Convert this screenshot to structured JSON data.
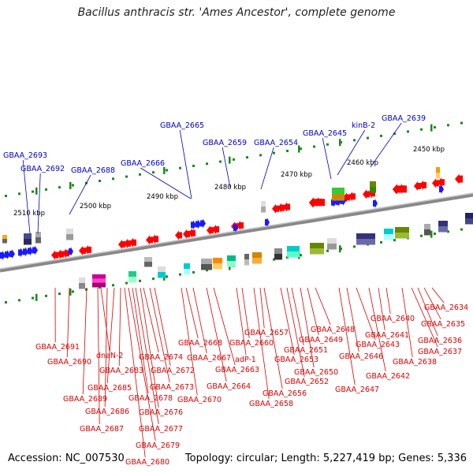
{
  "title": "Bacillus anthracis str. 'Ames Ancestor', complete genome",
  "footer": {
    "accession": "Accession: NC_007530",
    "summary": "Topology: circular; Length: 5,227,419 bp; Genes: 5,336"
  },
  "colors": {
    "forward_gene": "#1a1aff",
    "reverse_gene": "#ff0000",
    "backbone": "#888888",
    "tick": "#1a8a1a",
    "forward_label": "#0000cc",
    "reverse_label": "#dd0000"
  },
  "scale_labels": [
    "2510 kbp",
    "2500 kbp",
    "2490 kbp",
    "2480 kbp",
    "2470 kbp",
    "2460 kbp",
    "2450 kbp"
  ],
  "forward_genes": [
    "GBAA_2693",
    "GBAA_2692",
    "GBAA_2688",
    "GBAA_2666",
    "GBAA_2665",
    "GBAA_2659",
    "GBAA_2654",
    "GBAA_2645",
    "kinB-2",
    "GBAA_2639"
  ],
  "reverse_genes": [
    "GBAA_2691",
    "GBAA_2690",
    "GBAA_2689",
    "GBAA_2687",
    "dnaN-2",
    "GBAA_2686",
    "GBAA_2685",
    "GBAA_2683",
    "GBAA_2680",
    "GBAA_2679",
    "GBAA_2678",
    "GBAA_2677",
    "GBAA_2676",
    "GBAA_2674",
    "GBAA_2673",
    "GBAA_2672",
    "GBAA_2670",
    "GBAA_2668",
    "GBAA_2667",
    "GBAA_2664",
    "GBAA_2663",
    "adP-1",
    "GBAA_2660",
    "GBAA_2658",
    "GBAA_2657",
    "GBAA_2656",
    "GBAA_2653",
    "GBAA_2652",
    "GBAA_2651",
    "GBAA_2650",
    "GBAA_2649",
    "GBAA_2648",
    "GBAA_2647",
    "GBAA_2646",
    "GBAA_2643",
    "GBAA_2642",
    "GBAA_2641",
    "GBAA_2640",
    "GBAA_2638",
    "GBAA_2637",
    "GBAA_2636",
    "GBAA_2635",
    "GBAA_2634"
  ]
}
